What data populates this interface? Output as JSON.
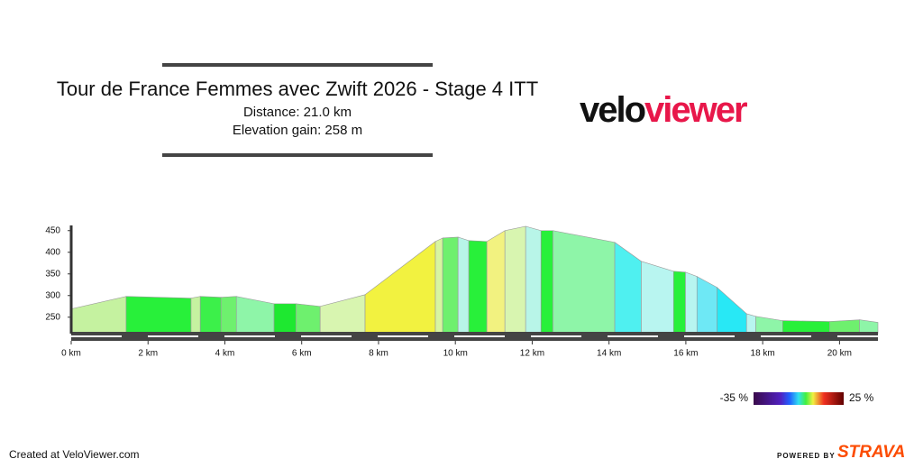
{
  "chart_data": {
    "type": "elevation-profile",
    "title": "Tour de France Femmes avec Zwift 2026 - Stage 4 ITT",
    "subtitle": [
      "Distance: 21.0 km",
      "Elevation gain: 258 m"
    ],
    "brand": [
      "velo",
      "viewer"
    ],
    "x": [
      0,
      1.43,
      3.12,
      3.36,
      3.9,
      4.3,
      5.28,
      5.85,
      6.48,
      7.65,
      9.48,
      9.67,
      10.07,
      10.35,
      10.82,
      11.29,
      11.83,
      12.23,
      12.54,
      14.15,
      14.84,
      15.68,
      15.99,
      16.29,
      16.81,
      17.58,
      17.82,
      18.52,
      19.74,
      20.52,
      21.0
    ],
    "values": [
      269,
      298,
      294,
      298,
      296,
      298,
      281,
      281,
      275,
      302,
      425,
      433,
      435,
      427,
      425,
      450,
      460,
      450,
      450,
      423,
      379,
      356,
      354,
      344,
      319,
      258,
      252,
      242,
      240,
      244,
      238
    ],
    "segment_colors": [
      "#c5f2a0",
      "#28f03a",
      "#c5f2a0",
      "#3cf04a",
      "#6ef06e",
      "#8ef5a8",
      "#1ee830",
      "#6ef06e",
      "#d8f5b0",
      "#f2f240",
      "#d8f5a0",
      "#6ef06e",
      "#b8f5e8",
      "#28f03a",
      "#f2f280",
      "#d8f5b0",
      "#b8f5e8",
      "#28f03a",
      "#8ef5a8",
      "#4ff0f0",
      "#b8f5f0",
      "#28f03a",
      "#b8f5f0",
      "#6ee8f5",
      "#28e8f5",
      "#b8f5f0",
      "#8ef5a8",
      "#28f03a",
      "#6ef06e",
      "#8ef5a8"
    ],
    "xlim": [
      0,
      21
    ],
    "ylim": [
      212,
      462
    ],
    "xticks": [
      {
        "value": 0,
        "label": "0 km"
      },
      {
        "value": 2,
        "label": "2 km"
      },
      {
        "value": 4,
        "label": "4 km"
      },
      {
        "value": 6,
        "label": "6 km"
      },
      {
        "value": 8,
        "label": "8 km"
      },
      {
        "value": 10,
        "label": "10 km"
      },
      {
        "value": 12,
        "label": "12 km"
      },
      {
        "value": 14,
        "label": "14 km"
      },
      {
        "value": 16,
        "label": "16 km"
      },
      {
        "value": 18,
        "label": "18 km"
      },
      {
        "value": 20,
        "label": "20 km"
      }
    ],
    "yticks": [
      250,
      300,
      350,
      400,
      450
    ],
    "gradient_legend": {
      "min_label": "-35 %",
      "max_label": "25 %"
    },
    "footer": {
      "left": "Created at VeloViewer.com",
      "powered": "POWERED BY",
      "strava": "STRAVA"
    }
  }
}
